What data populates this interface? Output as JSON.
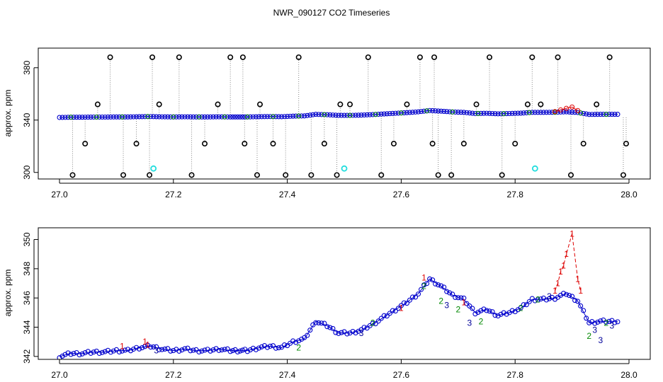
{
  "figure": {
    "title": "NWR_090127  CO2 Timeseries"
  },
  "chart_data": [
    {
      "type": "scatter",
      "ylabel": "approx. ppm",
      "xlim": [
        27.0,
        28.0
      ],
      "ylim": [
        295,
        395
      ],
      "x_ticks": [
        "27.0",
        "27.2",
        "27.4",
        "27.6",
        "27.8",
        "28.0"
      ],
      "y_ticks": [
        "300",
        "340",
        "380"
      ],
      "colors": {
        "main": "#0000cc",
        "ref": "#008800",
        "flag": "#dd0000",
        "spike": "#000000",
        "cal": "#22dddd"
      },
      "series": [
        {
          "role": "main",
          "x": [
            27.0,
            27.02,
            27.04,
            27.06,
            27.08,
            27.1,
            27.12,
            27.14,
            27.16,
            27.18,
            27.2,
            27.22,
            27.24,
            27.26,
            27.28,
            27.3,
            27.33,
            27.35,
            27.37,
            27.39,
            27.41,
            27.43,
            27.45,
            27.47,
            27.49,
            27.51,
            27.53,
            27.55,
            27.57,
            27.59,
            27.61,
            27.63,
            27.65,
            27.67,
            27.69,
            27.71,
            27.73,
            27.75,
            27.77,
            27.79,
            27.81,
            27.83,
            27.85,
            27.87,
            27.89,
            27.91,
            27.93,
            27.95,
            27.97,
            27.98
          ],
          "y": [
            342.0,
            342.2,
            342.2,
            342.3,
            342.3,
            342.4,
            342.4,
            342.6,
            342.7,
            342.5,
            342.4,
            342.5,
            342.4,
            342.4,
            342.5,
            342.4,
            342.4,
            342.6,
            342.7,
            342.6,
            343.0,
            343.2,
            344.4,
            344.1,
            343.6,
            343.6,
            343.8,
            344.2,
            344.7,
            345.2,
            345.7,
            346.3,
            347.3,
            346.8,
            346.2,
            345.9,
            345.0,
            345.2,
            344.8,
            345.0,
            345.3,
            345.9,
            345.9,
            346.0,
            346.3,
            345.8,
            344.3,
            344.4,
            344.4,
            344.4
          ]
        },
        {
          "role": "flag",
          "x": [
            27.87,
            27.88,
            27.89,
            27.9,
            27.91
          ],
          "y": [
            346.5,
            347.8,
            349.0,
            350.0,
            347.3
          ]
        },
        {
          "role": "spike",
          "x": [
            27.023,
            27.045,
            27.067,
            27.089,
            27.112,
            27.135,
            27.158,
            27.163,
            27.175,
            27.21,
            27.232,
            27.255,
            27.278,
            27.3,
            27.322,
            27.325,
            27.347,
            27.352,
            27.375,
            27.397,
            27.42,
            27.442,
            27.465,
            27.487,
            27.493,
            27.51,
            27.542,
            27.565,
            27.587,
            27.61,
            27.633,
            27.655,
            27.658,
            27.665,
            27.688,
            27.71,
            27.732,
            27.755,
            27.777,
            27.8,
            27.822,
            27.83,
            27.845,
            27.875,
            27.898,
            27.92,
            27.943,
            27.966,
            27.99,
            27.995
          ],
          "y": [
            298,
            322,
            352,
            388,
            298,
            322,
            298,
            388,
            352,
            388,
            298,
            322,
            352,
            388,
            388,
            322,
            298,
            352,
            322,
            298,
            388,
            298,
            322,
            298,
            352,
            352,
            388,
            298,
            322,
            352,
            388,
            322,
            388,
            298,
            298,
            322,
            352,
            388,
            298,
            322,
            352,
            388,
            352,
            388,
            298,
            322,
            352,
            388,
            298,
            322
          ]
        },
        {
          "role": "cal",
          "x": [
            27.165,
            27.5,
            27.835
          ],
          "y": [
            303,
            303,
            303
          ]
        }
      ]
    },
    {
      "type": "scatter",
      "ylabel": "approx. ppm",
      "xlim": [
        27.0,
        28.0
      ],
      "ylim": [
        341.8,
        350.8
      ],
      "x_ticks": [
        "27.0",
        "27.2",
        "27.4",
        "27.6",
        "27.8",
        "28.0"
      ],
      "y_ticks": [
        "342",
        "344",
        "346",
        "348",
        "350"
      ],
      "markers": {
        "ref": "2",
        "alt": "3",
        "flag": "1"
      },
      "colors": {
        "main": "#0000cc",
        "ref": "#008800",
        "alt": "#000099",
        "flag": "#dd0000"
      },
      "series": [
        {
          "role": "main",
          "x": [
            27.0,
            27.02,
            27.04,
            27.06,
            27.08,
            27.1,
            27.12,
            27.14,
            27.16,
            27.18,
            27.2,
            27.22,
            27.24,
            27.26,
            27.28,
            27.3,
            27.33,
            27.35,
            27.37,
            27.39,
            27.41,
            27.43,
            27.45,
            27.47,
            27.49,
            27.51,
            27.53,
            27.55,
            27.57,
            27.59,
            27.61,
            27.63,
            27.65,
            27.67,
            27.69,
            27.71,
            27.73,
            27.75,
            27.77,
            27.79,
            27.81,
            27.83,
            27.85,
            27.87,
            27.89,
            27.91,
            27.93,
            27.95,
            27.97,
            27.98
          ],
          "y": [
            342.0,
            342.2,
            342.2,
            342.3,
            342.3,
            342.4,
            342.4,
            342.6,
            342.7,
            342.5,
            342.4,
            342.5,
            342.4,
            342.4,
            342.5,
            342.4,
            342.4,
            342.6,
            342.7,
            342.6,
            343.0,
            343.2,
            344.4,
            344.1,
            343.6,
            343.6,
            343.8,
            344.2,
            344.7,
            345.2,
            345.7,
            346.3,
            347.3,
            346.8,
            346.2,
            345.9,
            345.0,
            345.2,
            344.8,
            345.0,
            345.3,
            345.9,
            345.9,
            346.0,
            346.3,
            345.8,
            344.3,
            344.4,
            344.4,
            344.4
          ]
        },
        {
          "role": "flag",
          "x": [
            27.11,
            27.15,
            27.155,
            27.6,
            27.64,
            27.71,
            27.87,
            27.875,
            27.88,
            27.885,
            27.89,
            27.9,
            27.91,
            27.915
          ],
          "y": [
            342.7,
            343.0,
            342.8,
            345.3,
            347.4,
            345.7,
            346.5,
            347.0,
            347.8,
            348.2,
            349.0,
            350.4,
            347.3,
            346.5
          ]
        },
        {
          "role": "ref",
          "x": [
            27.42,
            27.55,
            27.64,
            27.67,
            27.7,
            27.74,
            27.81,
            27.84,
            27.93,
            27.96
          ],
          "y": [
            342.6,
            344.3,
            346.8,
            345.8,
            345.2,
            344.4,
            345.3,
            345.9,
            343.4,
            344.3
          ]
        },
        {
          "role": "alt",
          "x": [
            27.17,
            27.53,
            27.68,
            27.72,
            27.86,
            27.94,
            27.95,
            27.97
          ],
          "y": [
            342.4,
            343.6,
            345.5,
            344.3,
            346.1,
            343.8,
            343.1,
            344.1
          ]
        }
      ]
    }
  ]
}
